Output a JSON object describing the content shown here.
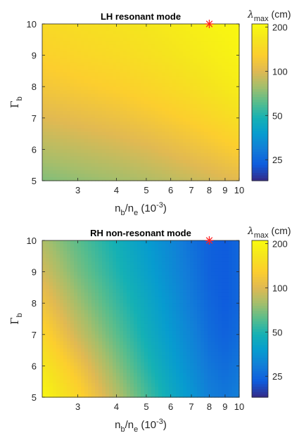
{
  "chart_data": [
    {
      "type": "heatmap",
      "title": "LH resonant mode",
      "xlabel": {
        "base": "n",
        "sub1": "b",
        "mid": "/n",
        "sub2": "e",
        "rest": " (10",
        "sup": "-3",
        "end": ")"
      },
      "ylabel": {
        "greek": "Γ",
        "sub": "b"
      },
      "x_scale": "log",
      "xlim": [
        2.3,
        10
      ],
      "ylim": [
        5,
        10
      ],
      "x_ticks": [
        3,
        4,
        5,
        6,
        7,
        8,
        9,
        10
      ],
      "x_tick_labels": [
        "3",
        "4",
        "5",
        "6",
        "7",
        "8",
        "9",
        "10"
      ],
      "y_ticks": [
        5,
        6,
        7,
        8,
        9,
        10
      ],
      "y_tick_labels": [
        "5",
        "6",
        "7",
        "8",
        "9",
        "10"
      ],
      "z_label": {
        "greek": "λ",
        "sub": "max",
        "unit": " (cm)"
      },
      "z_scale": "log",
      "z_range": [
        18,
        210
      ],
      "z_ticks": [
        25,
        50,
        100,
        200
      ],
      "z_tick_labels": [
        "25",
        "50",
        "100",
        "200"
      ],
      "x": [
        2.3,
        3,
        4,
        5,
        6,
        7,
        8,
        9,
        10
      ],
      "y": [
        5,
        6,
        7,
        8,
        9,
        10
      ],
      "z": [
        [
          70,
          74,
          78,
          82,
          86,
          90,
          94,
          98,
          102
        ],
        [
          84,
          88,
          93,
          98,
          104,
          110,
          116,
          122,
          128
        ],
        [
          100,
          105,
          111,
          118,
          125,
          132,
          140,
          148,
          156
        ],
        [
          118,
          124,
          131,
          139,
          147,
          155,
          164,
          172,
          180
        ],
        [
          133,
          140,
          148,
          156,
          164,
          172,
          180,
          187,
          194
        ],
        [
          145,
          152,
          160,
          168,
          176,
          184,
          191,
          197,
          202
        ]
      ],
      "marker": {
        "x": 8,
        "y": 10,
        "symbol": "*",
        "color": "#ff2020"
      }
    },
    {
      "type": "heatmap",
      "title": "RH non-resonant mode",
      "xlabel": {
        "base": "n",
        "sub1": "b",
        "mid": "/n",
        "sub2": "e",
        "rest": " (10",
        "sup": "-3",
        "end": ")"
      },
      "ylabel": {
        "greek": "Γ",
        "sub": "b"
      },
      "x_scale": "log",
      "xlim": [
        2.3,
        10
      ],
      "ylim": [
        5,
        10
      ],
      "x_ticks": [
        3,
        4,
        5,
        6,
        7,
        8,
        9,
        10
      ],
      "x_tick_labels": [
        "3",
        "4",
        "5",
        "6",
        "7",
        "8",
        "9",
        "10"
      ],
      "y_ticks": [
        5,
        6,
        7,
        8,
        9,
        10
      ],
      "y_tick_labels": [
        "5",
        "6",
        "7",
        "8",
        "9",
        "10"
      ],
      "z_label": {
        "greek": "λ",
        "sub": "max",
        "unit": " (cm)"
      },
      "z_scale": "log",
      "z_range": [
        18,
        210
      ],
      "z_ticks": [
        25,
        50,
        100,
        200
      ],
      "z_tick_labels": [
        "25",
        "50",
        "100",
        "200"
      ],
      "x": [
        2.3,
        3,
        4,
        5,
        6,
        7,
        8,
        9,
        10
      ],
      "y": [
        5,
        6,
        7,
        8,
        9,
        10
      ],
      "z": [
        [
          200,
          140,
          85,
          58,
          44,
          36,
          30,
          28,
          30
        ],
        [
          170,
          115,
          72,
          51,
          40,
          33,
          28,
          26,
          28
        ],
        [
          140,
          92,
          62,
          46,
          37,
          31,
          26,
          24,
          26
        ],
        [
          115,
          78,
          55,
          43,
          35,
          29,
          25,
          23,
          25
        ],
        [
          95,
          68,
          50,
          40,
          33,
          28,
          24,
          23,
          25
        ],
        [
          82,
          62,
          47,
          38,
          32,
          27,
          24,
          23,
          25
        ]
      ],
      "marker": {
        "x": 8,
        "y": 10,
        "symbol": "*",
        "color": "#ff2020"
      }
    }
  ]
}
